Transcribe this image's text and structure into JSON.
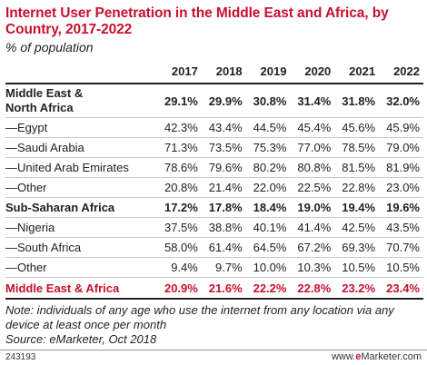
{
  "title": "Internet User Penetration in the Middle East and Africa, by Country, 2017-2022",
  "subtitle": "% of population",
  "note": "Note: individuals of any age who use the internet from any location via any device at least once per month",
  "source": "Source: eMarketer, Oct 2018",
  "footer": {
    "id": "243193",
    "brand_prefix": "www.",
    "brand_e": "e",
    "brand_rest": "Marketer.com"
  },
  "chart_data": {
    "type": "table",
    "columns": [
      "2017",
      "2018",
      "2019",
      "2020",
      "2021",
      "2022"
    ],
    "rows": [
      {
        "label": "Middle East & North Africa",
        "values": [
          "29.1%",
          "29.9%",
          "30.8%",
          "31.4%",
          "31.8%",
          "32.0%"
        ],
        "style": "bold"
      },
      {
        "label": "—Egypt",
        "values": [
          "42.3%",
          "43.4%",
          "44.5%",
          "45.4%",
          "45.6%",
          "45.9%"
        ],
        "style": "normal"
      },
      {
        "label": "—Saudi Arabia",
        "values": [
          "71.3%",
          "73.5%",
          "75.3%",
          "77.0%",
          "78.5%",
          "79.0%"
        ],
        "style": "normal"
      },
      {
        "label": "—United Arab Emirates",
        "values": [
          "78.6%",
          "79.6%",
          "80.2%",
          "80.8%",
          "81.5%",
          "81.9%"
        ],
        "style": "normal"
      },
      {
        "label": "—Other",
        "values": [
          "20.8%",
          "21.4%",
          "22.0%",
          "22.5%",
          "22.8%",
          "23.0%"
        ],
        "style": "normal"
      },
      {
        "label": "Sub-Saharan Africa",
        "values": [
          "17.2%",
          "17.8%",
          "18.4%",
          "19.0%",
          "19.4%",
          "19.6%"
        ],
        "style": "bold"
      },
      {
        "label": "—Nigeria",
        "values": [
          "37.5%",
          "38.8%",
          "40.1%",
          "41.4%",
          "42.5%",
          "43.5%"
        ],
        "style": "normal"
      },
      {
        "label": "—South Africa",
        "values": [
          "58.0%",
          "61.4%",
          "64.5%",
          "67.2%",
          "69.3%",
          "70.7%"
        ],
        "style": "normal"
      },
      {
        "label": "—Other",
        "values": [
          "9.4%",
          "9.7%",
          "10.0%",
          "10.3%",
          "10.5%",
          "10.5%"
        ],
        "style": "normal"
      },
      {
        "label": "Middle East & Africa",
        "values": [
          "20.9%",
          "21.6%",
          "22.2%",
          "22.8%",
          "23.2%",
          "23.4%"
        ],
        "style": "total"
      }
    ],
    "accent_color": "#c8102e"
  }
}
